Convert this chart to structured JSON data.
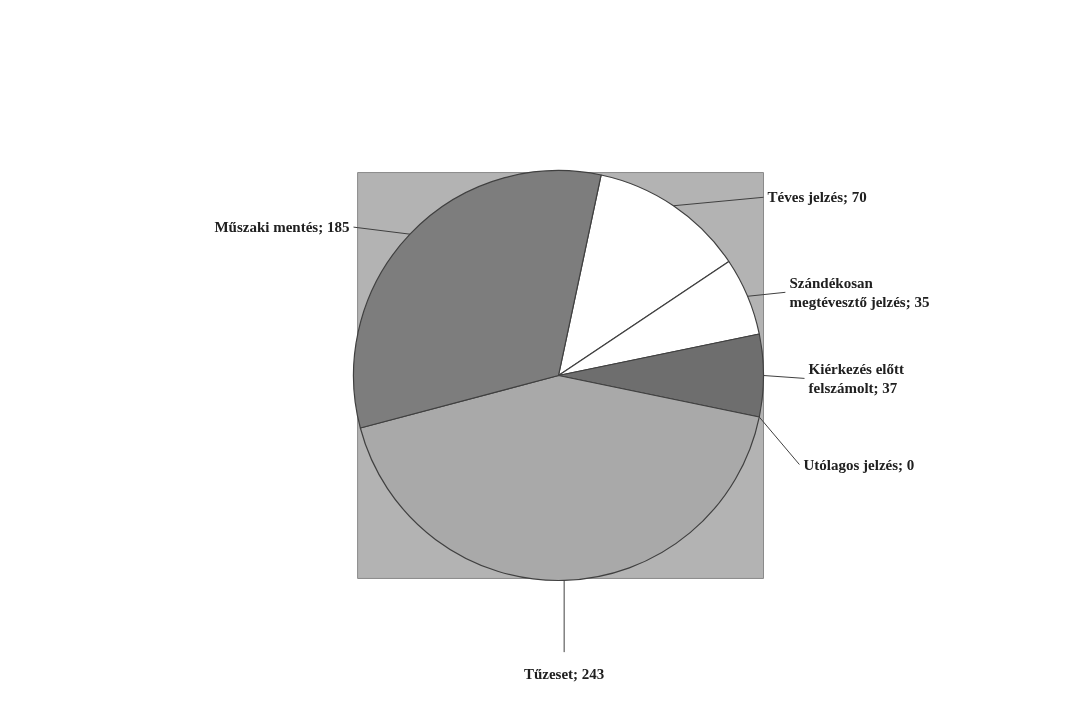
{
  "chart_data": {
    "type": "pie",
    "categories": [
      "Téves jelzés; 70",
      "Szándékosan megtévesztő jelzés; 35",
      "Kiérkezés előtt felszámolt; 37",
      "Utólagos jelzés; 0",
      "Tűzeset; 243",
      "Műszaki mentés; 185"
    ],
    "values": [
      70,
      35,
      37,
      0,
      243,
      185
    ],
    "colors": [
      "#ffffff",
      "#ffffff",
      "#6e6e6e",
      "#8c8c8c",
      "#a9a9a9",
      "#7d7d7d"
    ]
  }
}
